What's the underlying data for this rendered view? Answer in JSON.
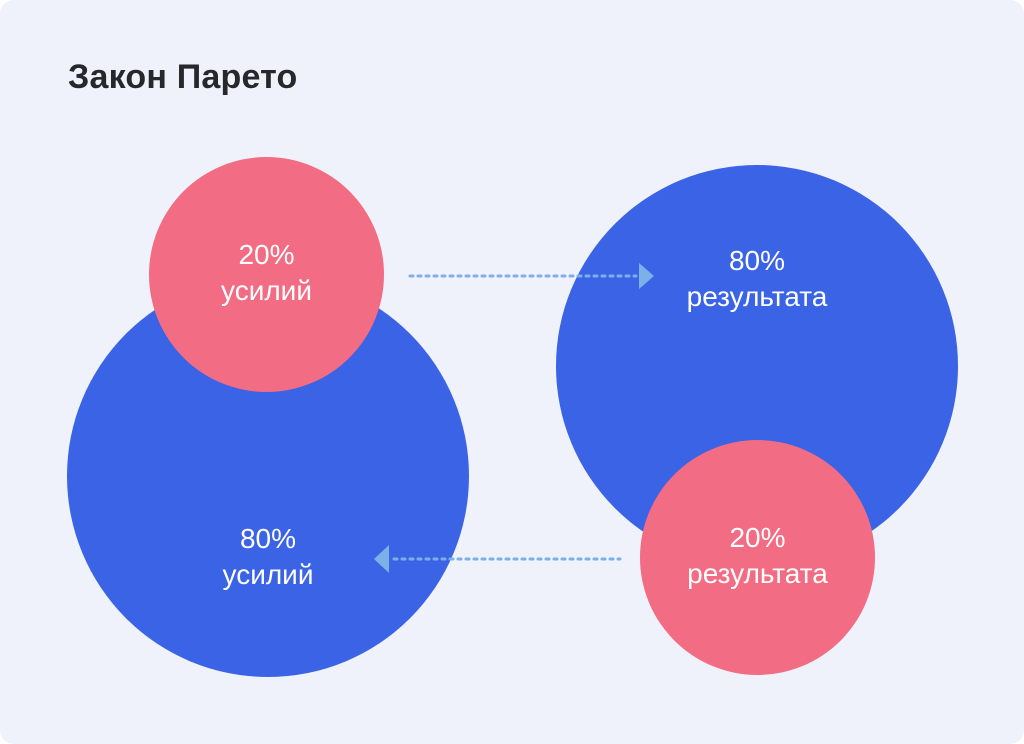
{
  "title": "Закон Парето",
  "left": {
    "big": {
      "percent": "80%",
      "label": "усилий"
    },
    "small": {
      "percent": "20%",
      "label": "усилий"
    }
  },
  "right": {
    "big": {
      "percent": "80%",
      "label": "результата"
    },
    "small": {
      "percent": "20%",
      "label": "результата"
    }
  },
  "colors": {
    "background": "#eff1fb",
    "blue": "#3b63e6",
    "pink": "#f26c84",
    "arrow": "#7cb0e8",
    "text_dark": "#26282c"
  }
}
